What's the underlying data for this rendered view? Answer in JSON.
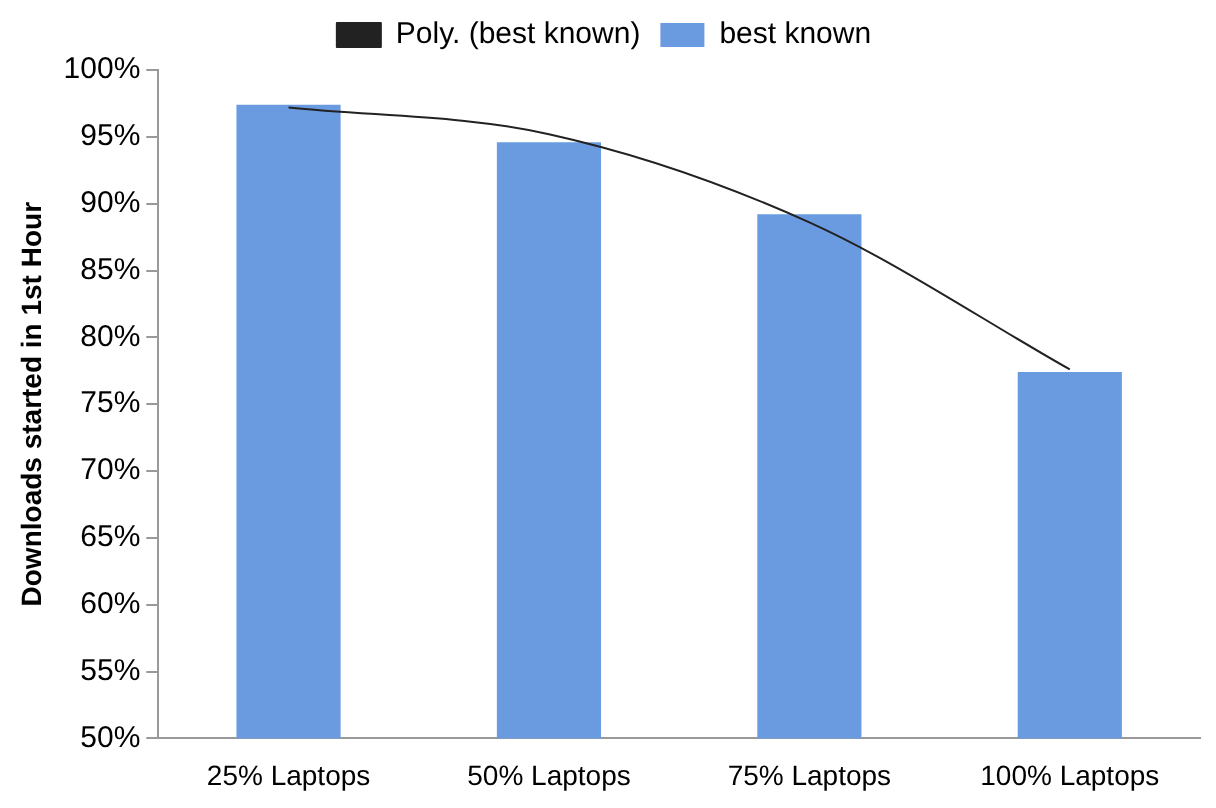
{
  "chart_data": {
    "type": "bar",
    "ylabel": "Downloads started in 1st Hour",
    "categories": [
      "25% Laptops",
      "50% Laptops",
      "75% Laptops",
      "100% Laptops"
    ],
    "series": [
      {
        "name": "best known",
        "color": "#6a9be0",
        "values": [
          97.4,
          94.6,
          89.2,
          77.4
        ]
      },
      {
        "name": "Poly. (best known)",
        "type": "line",
        "color": "#222222",
        "values": [
          97.2,
          95.2,
          88.6,
          77.6
        ]
      }
    ],
    "ylim": [
      50,
      100
    ],
    "yticks": [
      {
        "value": 50,
        "label": "50%"
      },
      {
        "value": 55,
        "label": "55%"
      },
      {
        "value": 60,
        "label": "60%"
      },
      {
        "value": 65,
        "label": "65%"
      },
      {
        "value": 70,
        "label": "70%"
      },
      {
        "value": 75,
        "label": "75%"
      },
      {
        "value": 80,
        "label": "80%"
      },
      {
        "value": 85,
        "label": "85%"
      },
      {
        "value": 90,
        "label": "90%"
      },
      {
        "value": 95,
        "label": "95%"
      },
      {
        "value": 100,
        "label": "100%"
      }
    ],
    "grid": false,
    "legend": "top",
    "marker": "none"
  }
}
